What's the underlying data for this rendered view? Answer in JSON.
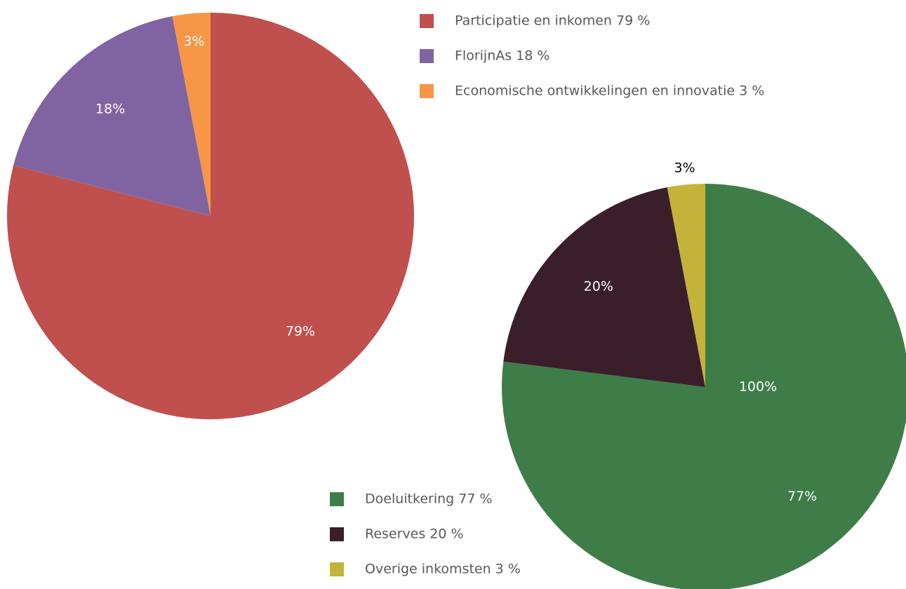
{
  "chart_data": [
    {
      "type": "pie",
      "categories": [
        "Participatie en inkomen 79 %",
        "FlorijnAs  18 %",
        "Economische ontwikkelingen en innovatie 3 %"
      ],
      "values": [
        79,
        18,
        3
      ],
      "value_labels": [
        "79%",
        "18%",
        "3%"
      ],
      "colors": [
        "#c0504d",
        "#8064a2",
        "#f79646"
      ]
    },
    {
      "type": "pie",
      "categories": [
        "Doeluitkering 77 %",
        "Reserves 20 %",
        "Overige inkomsten 3 %"
      ],
      "values": [
        77,
        20,
        3
      ],
      "value_labels": [
        "77%",
        "20%",
        "3%"
      ],
      "colors": [
        "#3e7d48",
        "#3a1f2b",
        "#c3b33a"
      ],
      "annotation": "100%"
    }
  ]
}
